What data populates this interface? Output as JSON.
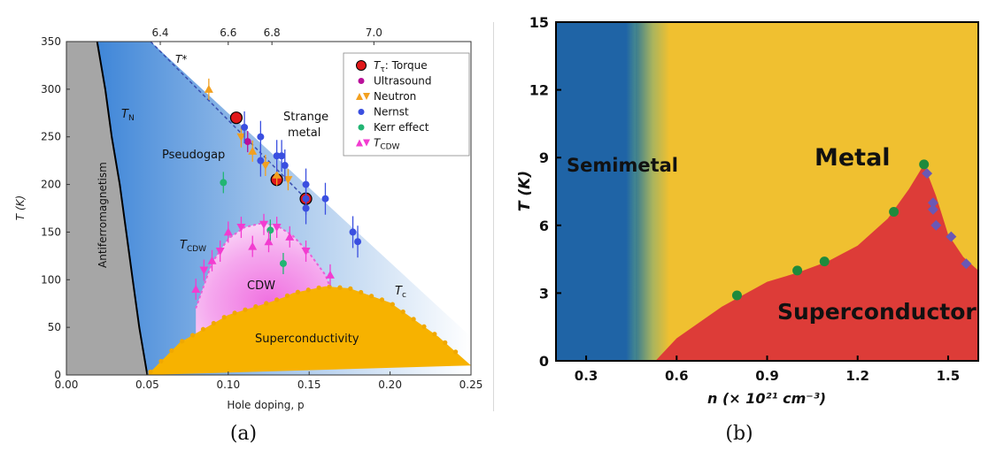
{
  "captions": {
    "a": "(a)",
    "b": "(b)"
  },
  "chart_data": [
    {
      "type": "scatter",
      "panel": "a",
      "xlabel": "Hole doping, p",
      "ylabel": "T (K)",
      "xlim": [
        0.0,
        0.25
      ],
      "ylim": [
        0,
        350
      ],
      "xticks": [
        "0.00",
        "0.05",
        "0.10",
        "0.15",
        "0.20",
        "0.25"
      ],
      "yticks": [
        "0",
        "50",
        "100",
        "150",
        "200",
        "250",
        "300",
        "350"
      ],
      "top_axis_ticks": [
        {
          "label": "6.4",
          "p": 0.058
        },
        {
          "label": "6.6",
          "p": 0.1
        },
        {
          "label": "6.8",
          "p": 0.127
        },
        {
          "label": "7.0",
          "p": 0.19
        }
      ],
      "regions": {
        "antiferromagnetism": "Antiferromagnetism",
        "pseudogap": "Pseudogap",
        "strange_metal": [
          "Strange",
          "metal"
        ],
        "cdw": "CDW",
        "superconductivity": "Superconductivity"
      },
      "line_labels": {
        "t_star": "T*",
        "t_n": "T",
        "t_n_sub": "N",
        "t_cdw": "T",
        "t_cdw_sub": "CDW",
        "t_c": "T",
        "t_c_sub": "c"
      },
      "boundaries": {
        "t_n": [
          [
            0.019,
            350
          ],
          [
            0.024,
            300
          ],
          [
            0.028,
            250
          ],
          [
            0.033,
            200
          ],
          [
            0.037,
            150
          ],
          [
            0.041,
            100
          ],
          [
            0.045,
            50
          ],
          [
            0.05,
            0
          ]
        ],
        "t_star": [
          [
            0.052,
            350
          ],
          [
            0.145,
            190
          ]
        ],
        "t_c": [
          [
            0.05,
            0
          ],
          [
            0.07,
            34
          ],
          [
            0.1,
            63
          ],
          [
            0.125,
            76
          ],
          [
            0.135,
            82
          ],
          [
            0.14,
            86
          ],
          [
            0.16,
            93
          ],
          [
            0.175,
            91
          ],
          [
            0.2,
            76
          ],
          [
            0.23,
            40
          ],
          [
            0.25,
            10
          ]
        ],
        "cdw_dome": [
          [
            0.08,
            70
          ],
          [
            0.09,
            118
          ],
          [
            0.1,
            143
          ],
          [
            0.11,
            155
          ],
          [
            0.12,
            159
          ],
          [
            0.13,
            157
          ],
          [
            0.14,
            146
          ],
          [
            0.15,
            128
          ],
          [
            0.16,
            105
          ],
          [
            0.163,
            92
          ]
        ]
      },
      "series": [
        {
          "name": "T_τ: Torque",
          "marker": "circle-large",
          "color": "#e0181a",
          "points": [
            [
              0.105,
              270
            ],
            [
              0.13,
              205
            ],
            [
              0.148,
              185
            ]
          ]
        },
        {
          "name": "Ultrasound",
          "marker": "circle",
          "color": "#b9109a",
          "points": [
            [
              0.112,
              245
            ]
          ]
        },
        {
          "name": "Neutron",
          "marker": "triangle-up/down",
          "color": "#f2a020",
          "points": [
            [
              0.088,
              300
            ],
            [
              0.108,
              250
            ],
            [
              0.115,
              235
            ],
            [
              0.123,
              220
            ],
            [
              0.13,
              210
            ],
            [
              0.137,
              205
            ]
          ]
        },
        {
          "name": "Nernst",
          "marker": "circle",
          "color": "#3a4fe0",
          "points": [
            [
              0.11,
              260
            ],
            [
              0.12,
              250
            ],
            [
              0.12,
              225
            ],
            [
              0.13,
              230
            ],
            [
              0.133,
              230
            ],
            [
              0.135,
              220
            ],
            [
              0.148,
              200
            ],
            [
              0.148,
              185
            ],
            [
              0.148,
              175
            ],
            [
              0.16,
              185
            ],
            [
              0.177,
              150
            ],
            [
              0.18,
              140
            ]
          ]
        },
        {
          "name": "Kerr effect",
          "marker": "circle",
          "color": "#22b573",
          "points": [
            [
              0.097,
              202
            ],
            [
              0.126,
              152
            ],
            [
              0.134,
              117
            ]
          ]
        },
        {
          "name": "T_CDW",
          "marker": "triangle-up/down",
          "color": "#f23cd0",
          "points": [
            [
              0.08,
              90
            ],
            [
              0.085,
              110
            ],
            [
              0.09,
              120
            ],
            [
              0.095,
              130
            ],
            [
              0.1,
              150
            ],
            [
              0.108,
              155
            ],
            [
              0.115,
              135
            ],
            [
              0.122,
              158
            ],
            [
              0.125,
              140
            ],
            [
              0.13,
              155
            ],
            [
              0.138,
              145
            ],
            [
              0.148,
              130
            ],
            [
              0.163,
              105
            ]
          ]
        }
      ],
      "legend": {
        "position": "top-right",
        "entries": [
          "T",
          "Ultrasound",
          "Neutron",
          "Nernst",
          "Kerr effect",
          "T"
        ],
        "torque_sub": "τ",
        "torque_rest": ": Torque",
        "cdw_sub": "CDW"
      }
    },
    {
      "type": "area",
      "panel": "b",
      "xlabel": "n (× 10²¹ cm⁻³)",
      "ylabel": "T (K)",
      "xlim": [
        0.2,
        1.6
      ],
      "ylim": [
        0,
        15
      ],
      "xticks": [
        "0.3",
        "0.6",
        "0.9",
        "1.2",
        "1.5"
      ],
      "yticks": [
        "0",
        "3",
        "6",
        "9",
        "12",
        "15"
      ],
      "regions": {
        "semimetal": "Semimetal",
        "metal": "Metal",
        "superconductor": "Superconductor"
      },
      "colors": {
        "semimetal": "#1f64a6",
        "metal": "#f0c030",
        "superconductor": "#dd3c38"
      },
      "semimetal_boundary_n": 0.5,
      "tc_boundary": [
        [
          0.53,
          0
        ],
        [
          0.6,
          1.0
        ],
        [
          0.75,
          2.4
        ],
        [
          0.9,
          3.5
        ],
        [
          1.0,
          3.9
        ],
        [
          1.1,
          4.4
        ],
        [
          1.2,
          5.1
        ],
        [
          1.3,
          6.3
        ],
        [
          1.37,
          7.6
        ],
        [
          1.42,
          8.7
        ],
        [
          1.46,
          7.3
        ],
        [
          1.5,
          5.6
        ],
        [
          1.55,
          4.6
        ],
        [
          1.6,
          4.0
        ]
      ],
      "series": [
        {
          "name": "",
          "marker": "circle",
          "color": "#1f8a3c",
          "points": [
            [
              0.8,
              2.9
            ],
            [
              1.0,
              4.0
            ],
            [
              1.09,
              4.4
            ],
            [
              1.32,
              6.6
            ],
            [
              1.42,
              8.7
            ]
          ]
        },
        {
          "name": "",
          "marker": "diamond",
          "color": "#6a58b5",
          "points": [
            [
              1.43,
              8.3
            ],
            [
              1.45,
              7.0
            ],
            [
              1.45,
              6.7
            ],
            [
              1.46,
              6.0
            ],
            [
              1.51,
              5.5
            ],
            [
              1.56,
              4.3
            ]
          ]
        }
      ]
    }
  ]
}
